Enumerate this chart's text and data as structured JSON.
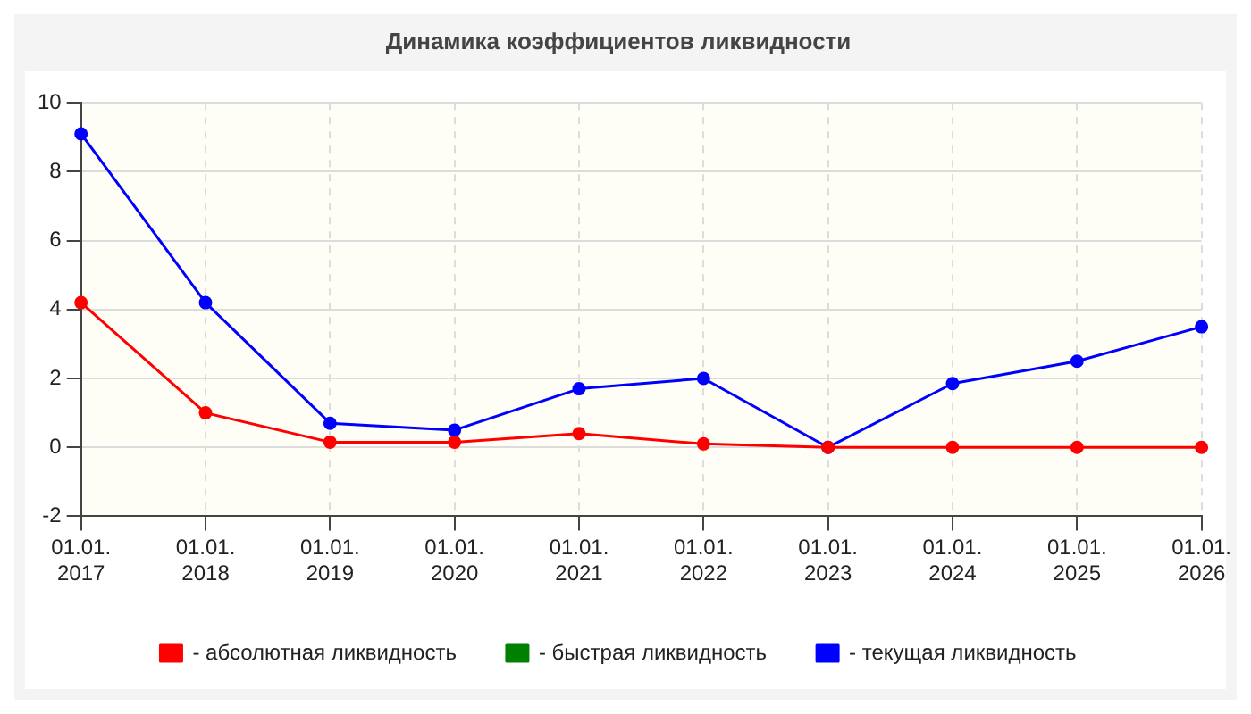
{
  "chart_data": {
    "type": "line",
    "title": "Динамика коэффициентов ликвидности",
    "categories": [
      "01.01. 2017",
      "01.01. 2018",
      "01.01. 2019",
      "01.01. 2020",
      "01.01. 2021",
      "01.01. 2022",
      "01.01. 2023",
      "01.01. 2024",
      "01.01. 2025",
      "01.01. 2026"
    ],
    "series": [
      {
        "name": "- абсолютная ликвидность",
        "color": "#ff0000",
        "values": [
          4.2,
          1.0,
          0.15,
          0.15,
          0.4,
          0.1,
          0,
          0,
          0,
          0
        ]
      },
      {
        "name": "- быстрая ликвидность",
        "color": "#008000",
        "values": [
          null,
          null,
          null,
          null,
          null,
          null,
          null,
          null,
          null,
          null
        ]
      },
      {
        "name": "- текущая ликвидность",
        "color": "#0000ff",
        "values": [
          9.1,
          4.2,
          0.7,
          0.5,
          1.7,
          2.0,
          0,
          1.85,
          2.5,
          3.5
        ]
      }
    ],
    "ylim": [
      -2,
      10
    ],
    "yticks": [
      -2,
      0,
      2,
      4,
      6,
      8,
      10
    ],
    "grid": true,
    "legend": "bottom",
    "marker": "circle",
    "line_style": "solid"
  }
}
